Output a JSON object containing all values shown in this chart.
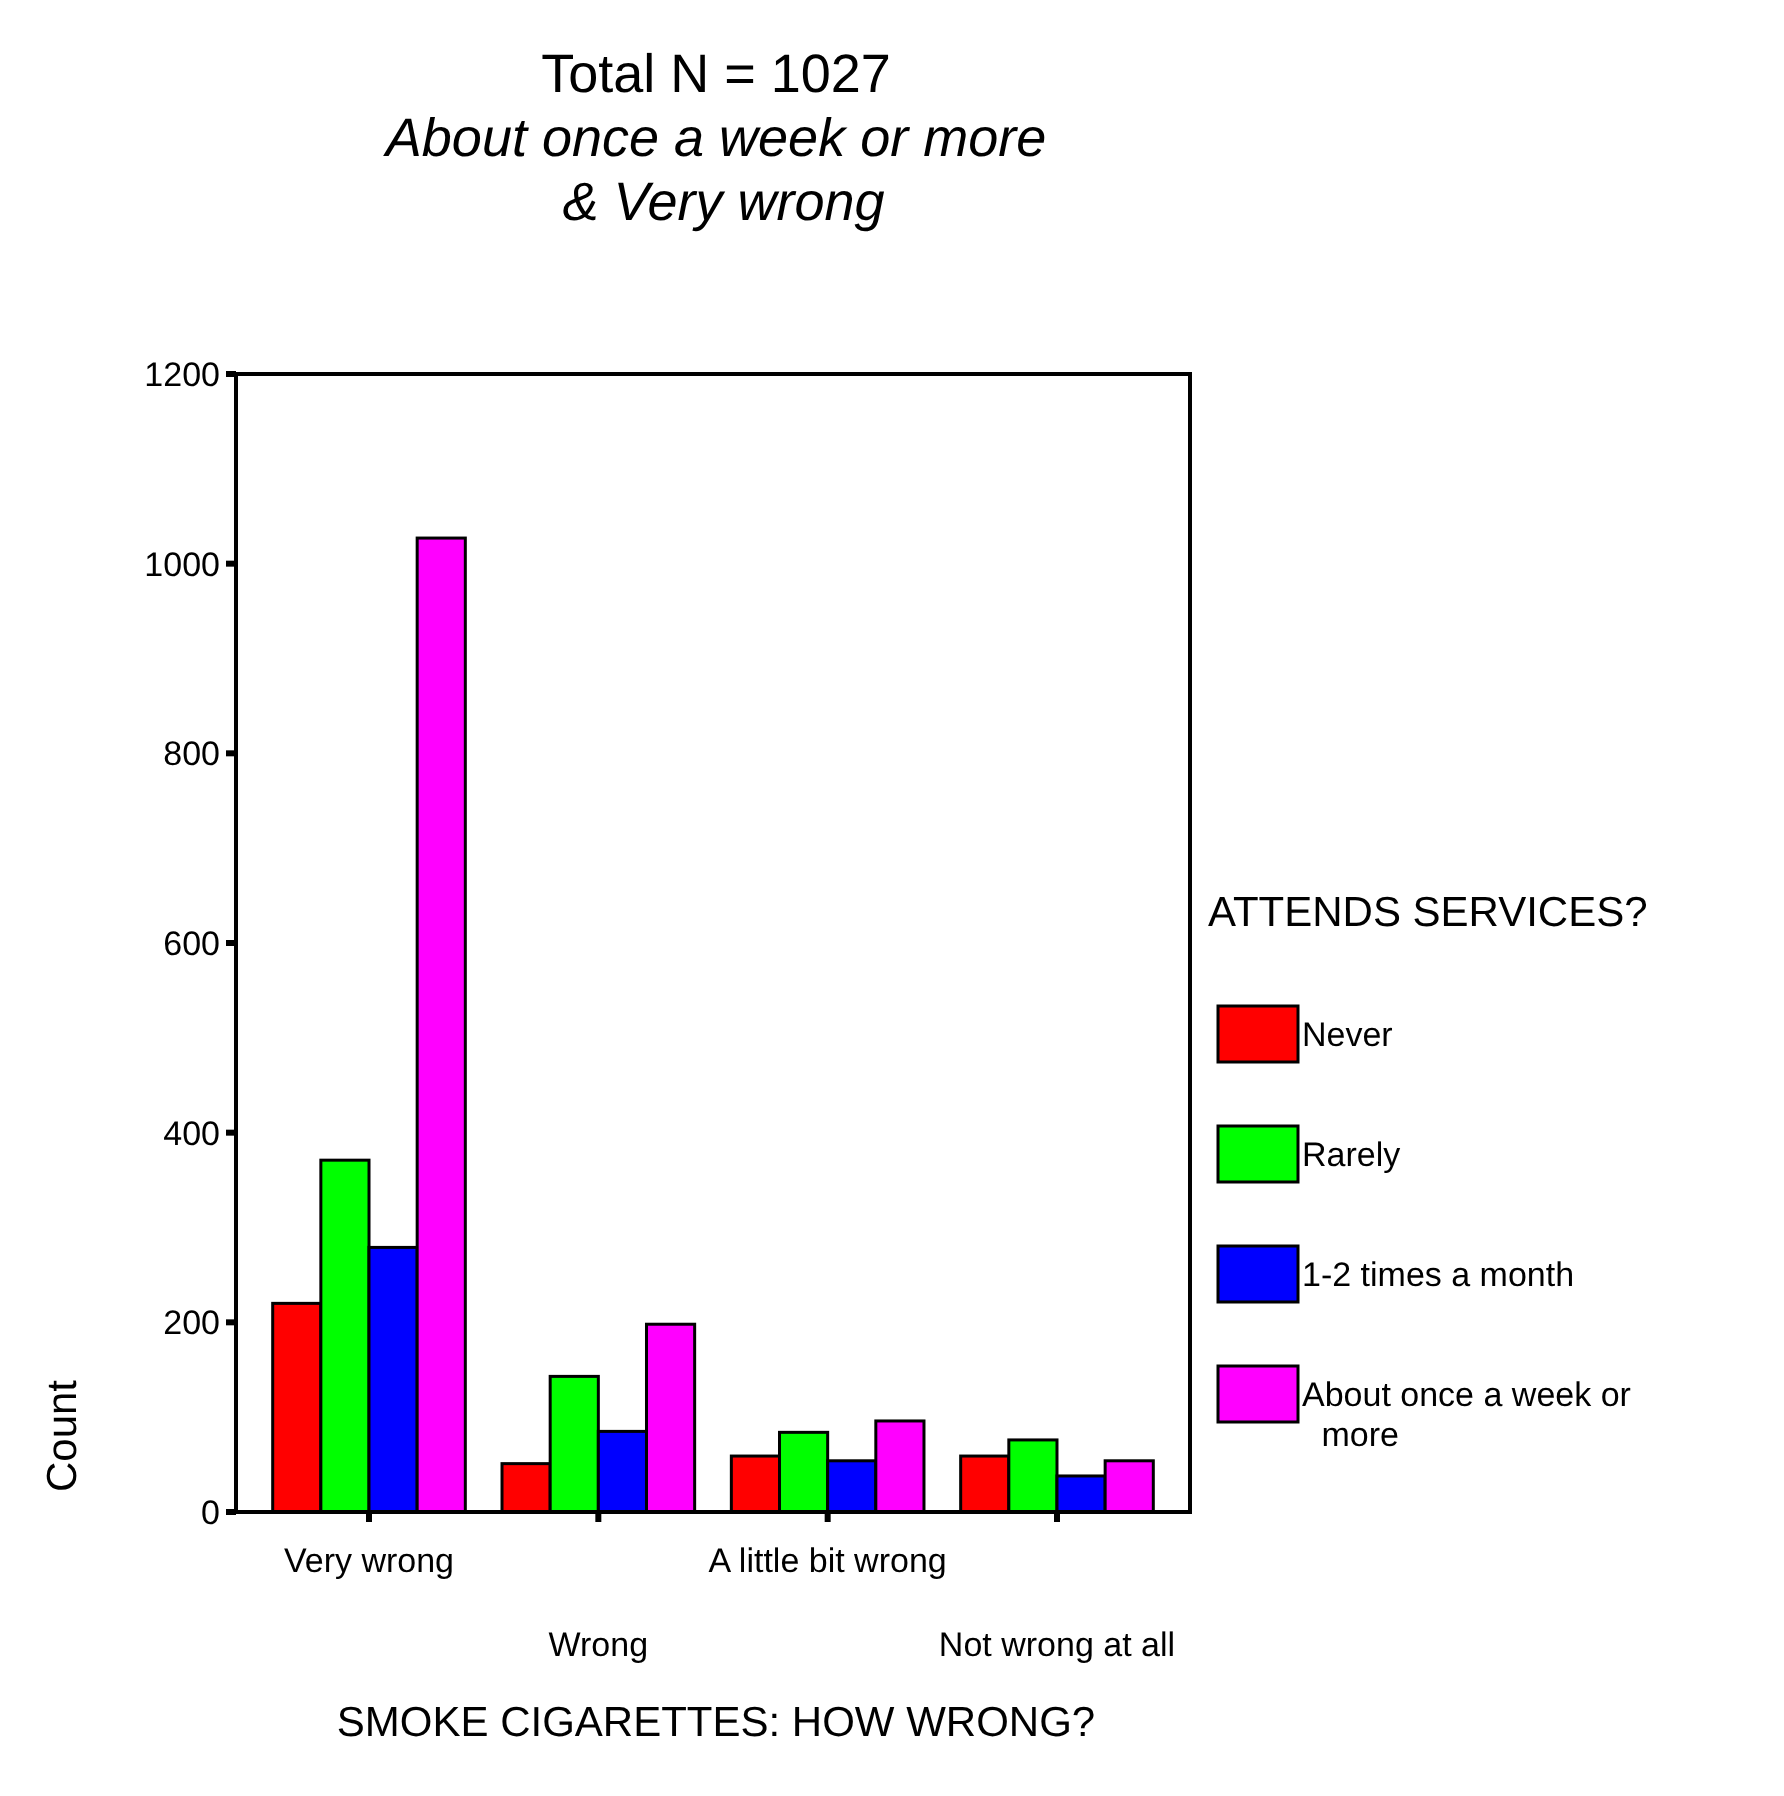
{
  "chart_data": {
    "type": "bar",
    "title": "Total N = 1027",
    "subtitle": "About once a week or more\n& Very wrong",
    "xlabel": "SMOKE CIGARETTES: HOW WRONG?",
    "ylabel": "Count",
    "legend_title": "ATTENDS SERVICES?",
    "categories": [
      "Very wrong",
      "Wrong",
      "A little bit wrong",
      "Not wrong at all"
    ],
    "series": [
      {
        "name": "Never",
        "color": "#ff0000",
        "values": [
          220,
          51,
          59,
          59
        ]
      },
      {
        "name": "Rarely",
        "color": "#00ff00",
        "values": [
          371,
          143,
          84,
          76
        ]
      },
      {
        "name": "1-2 times a month",
        "color": "#0000ff",
        "values": [
          279,
          85,
          54,
          38
        ]
      },
      {
        "name": "About once a week or more",
        "color": "#ff00ff",
        "values": [
          1027,
          198,
          96,
          54
        ]
      }
    ],
    "ylim": [
      0,
      1200
    ],
    "yticks": [
      0,
      200,
      400,
      600,
      800,
      1000,
      1200
    ],
    "grid": false,
    "legend": "right"
  }
}
